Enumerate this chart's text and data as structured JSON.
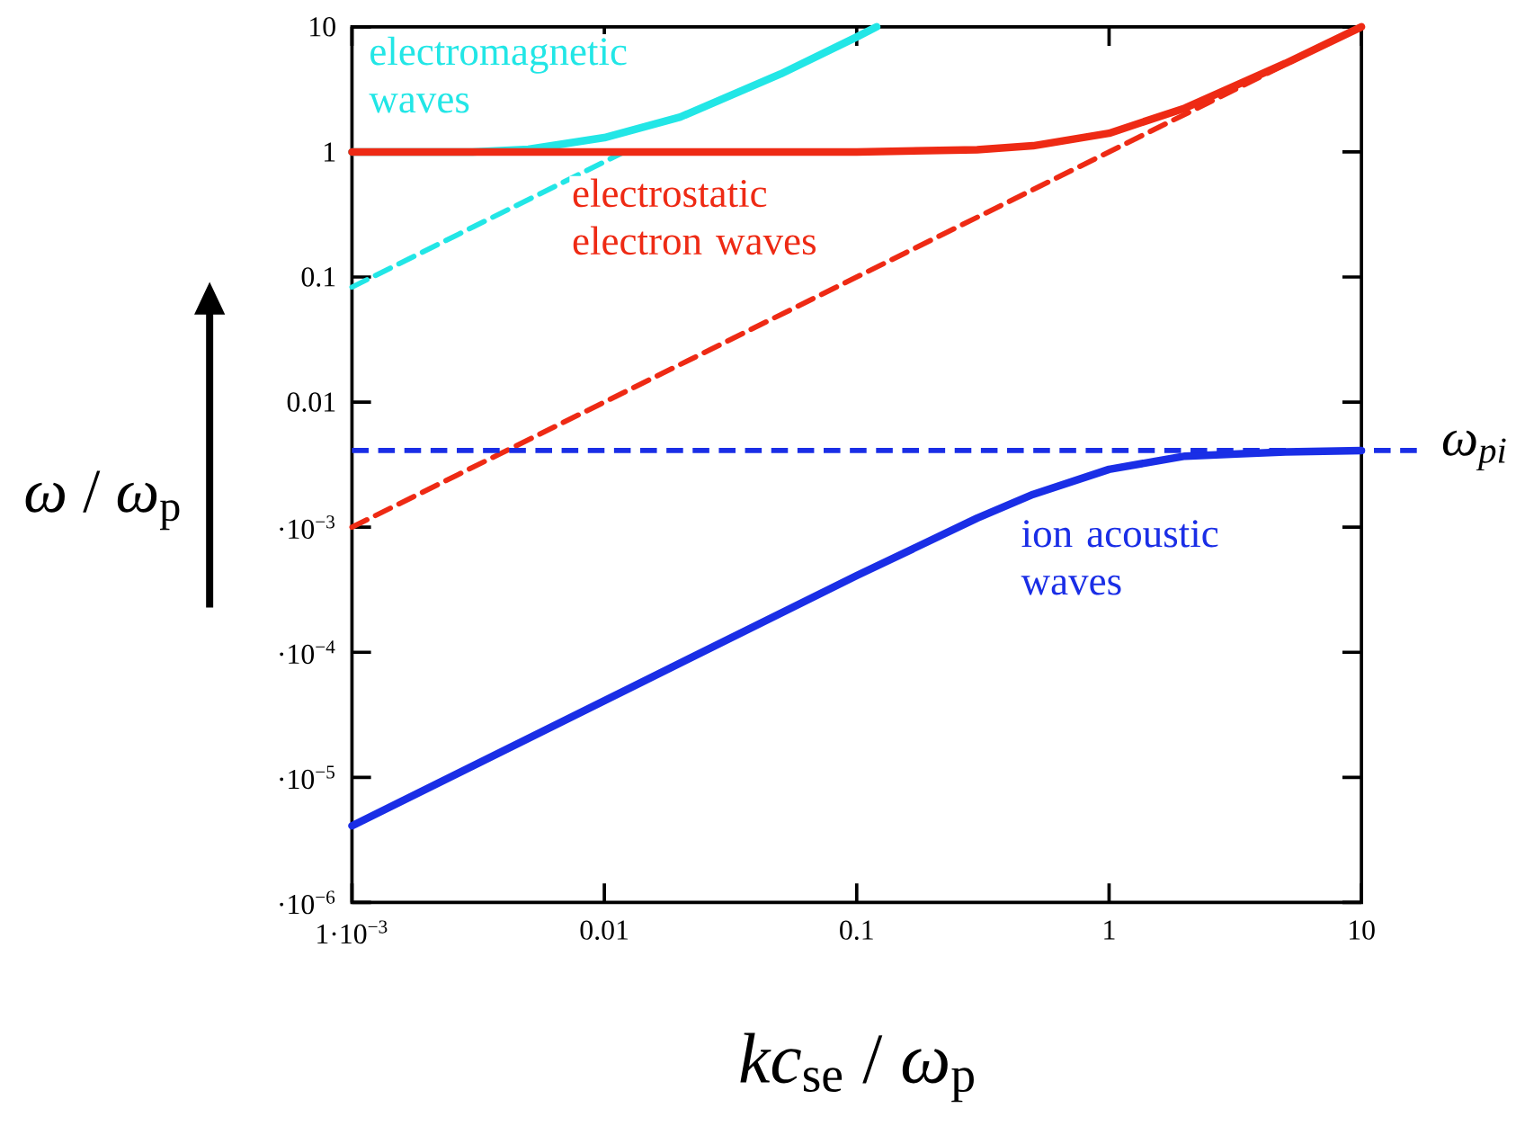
{
  "chart_data": {
    "type": "line",
    "xlabel": "*kc*$_{se}$ / *ω*$_{p}$",
    "ylabel": "*ω* / *ω*$_{p}$",
    "log": "xy",
    "xlim": [
      0.001,
      10
    ],
    "ylim": [
      1e-06,
      10
    ],
    "xticks": [
      {
        "value": 0.001,
        "label": "1·10$^{−3}$"
      },
      0.01,
      0.1,
      1,
      10
    ],
    "yticks": [
      {
        "value": 1e-06,
        "label": "·10$^{−6}$"
      },
      {
        "value": 1e-05,
        "label": "·10$^{−5}$"
      },
      {
        "value": 0.0001,
        "label": "·10$^{−4}$"
      },
      {
        "value": 0.001,
        "label": "·10$^{−3}$"
      },
      0.01,
      0.1,
      1,
      10
    ],
    "grid": false,
    "marker": "none",
    "series": [
      {
        "color": "#22e6e6",
        "line_style": "solid",
        "x": [
          0.001,
          0.003,
          0.005,
          0.01,
          0.02,
          0.05,
          0.1,
          0.12
        ],
        "values": [
          1.0,
          1.0,
          1.05,
          1.3,
          1.9,
          4.2,
          8.3,
          10
        ]
      },
      {
        "color": "#22e6e6",
        "line_style": "dashed",
        "x": [
          0.001,
          0.012
        ],
        "values": [
          0.083,
          1.0
        ]
      },
      {
        "color": "#ee2a14",
        "line_style": "solid",
        "x": [
          0.001,
          0.1,
          0.3,
          0.5,
          1,
          2,
          5,
          10
        ],
        "values": [
          1.0,
          1.0,
          1.04,
          1.12,
          1.41,
          2.24,
          5.1,
          10
        ]
      },
      {
        "color": "#ee2a14",
        "line_style": "dashed",
        "x": [
          0.001,
          10
        ],
        "values": [
          0.001,
          10
        ]
      },
      {
        "color": "#1a2ee6",
        "line_style": "solid",
        "x": [
          0.001,
          0.01,
          0.1,
          0.3,
          0.5,
          1,
          2,
          5,
          10
        ],
        "values": [
          4.1e-06,
          4.1e-05,
          0.00041,
          0.00118,
          0.00183,
          0.0029,
          0.0037,
          0.004,
          0.0041
        ]
      }
    ],
    "ref_lines": [
      {
        "axis": "y",
        "value": 0.0041,
        "label": "ω$_{pi}$",
        "color": "#1a2ee6",
        "line_style": "dashed"
      }
    ],
    "annotations": [
      "electromagnetic waves",
      "electrostatic electron waves",
      "ion acoustic waves"
    ]
  }
}
